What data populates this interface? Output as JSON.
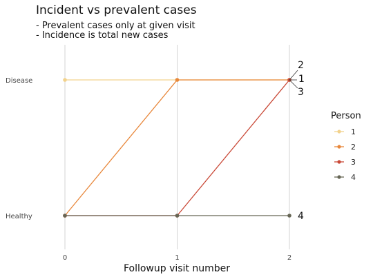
{
  "chart_data": {
    "type": "line",
    "title": "Incident vs prevalent cases",
    "subtitle": [
      "- Prevalent cases only at given visit",
      "- Incidence is total new cases"
    ],
    "xlabel": "Followup visit number",
    "ylabel": "",
    "x": [
      0,
      1,
      2
    ],
    "x_tick_labels": [
      "0",
      "1",
      "2"
    ],
    "y_categories": [
      "Healthy",
      "Disease"
    ],
    "grid": "vertical",
    "legend": {
      "title": "Person",
      "placement": "right"
    },
    "series": [
      {
        "name": "1",
        "color": "#f2d28c",
        "values": [
          "Disease",
          "Disease",
          "Disease"
        ],
        "end_label": "1"
      },
      {
        "name": "2",
        "color": "#e8873a",
        "values": [
          "Healthy",
          "Disease",
          "Disease"
        ],
        "end_label": "2"
      },
      {
        "name": "3",
        "color": "#c94836",
        "values": [
          "Healthy",
          "Healthy",
          "Disease"
        ],
        "end_label": "3"
      },
      {
        "name": "4",
        "color": "#666655",
        "values": [
          "Healthy",
          "Healthy",
          "Healthy"
        ],
        "end_label": "4"
      }
    ]
  }
}
